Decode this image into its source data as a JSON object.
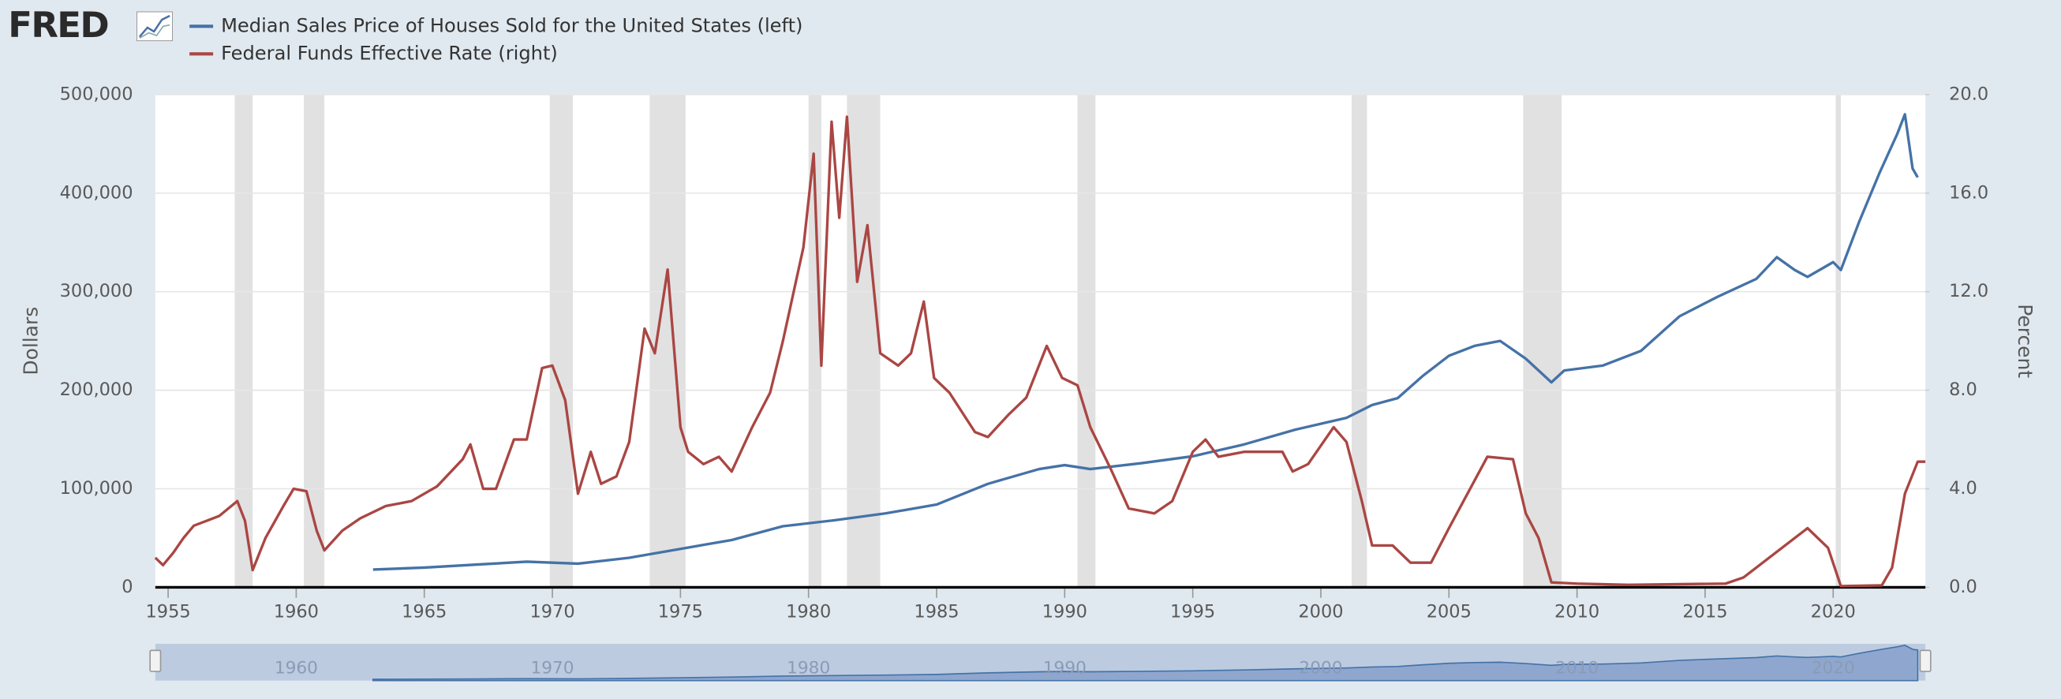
{
  "logo": "FRED",
  "chart_data": {
    "type": "line",
    "series": [
      {
        "name": "Median Sales Price of Houses Sold for the United States (left)",
        "color": "#4572a7",
        "axis": "y",
        "x": [
          1963,
          1965,
          1967,
          1969,
          1971,
          1973,
          1975,
          1977,
          1979,
          1981,
          1983,
          1985,
          1987,
          1989,
          1990,
          1991,
          1993,
          1995,
          1997,
          1999,
          2001,
          2002,
          2003,
          2004,
          2005,
          2006,
          2007,
          2008,
          2009,
          2009.5,
          2011,
          2012.5,
          2014,
          2015.5,
          2017,
          2017.8,
          2018.5,
          2019,
          2020,
          2020.3,
          2021,
          2021.8,
          2022.5,
          2022.8,
          2023.1,
          2023.3
        ],
        "values": [
          18000,
          20000,
          23000,
          26000,
          24000,
          30000,
          39000,
          48000,
          62000,
          68000,
          75000,
          84000,
          105000,
          120000,
          124000,
          120000,
          126000,
          133000,
          145000,
          160000,
          172000,
          185000,
          192000,
          215000,
          235000,
          245000,
          250000,
          232000,
          208000,
          220000,
          225000,
          240000,
          275000,
          295000,
          313000,
          335000,
          322000,
          315000,
          330000,
          322000,
          370000,
          420000,
          460000,
          480000,
          425000,
          416000
        ]
      },
      {
        "name": "Federal Funds Effective Rate (right)",
        "color": "#aa4643",
        "axis": "y2",
        "x": [
          1954.5,
          1954.8,
          1955.2,
          1955.6,
          1956.0,
          1956.5,
          1957.0,
          1957.7,
          1958.0,
          1958.3,
          1958.8,
          1959.5,
          1959.9,
          1960.4,
          1960.8,
          1961.1,
          1961.8,
          1962.5,
          1963.5,
          1964.5,
          1965.5,
          1966.5,
          1966.8,
          1967.3,
          1967.8,
          1968.5,
          1969.0,
          1969.6,
          1970.0,
          1970.5,
          1971.0,
          1971.5,
          1971.9,
          1972.5,
          1973.0,
          1973.6,
          1974.0,
          1974.5,
          1975.0,
          1975.3,
          1975.9,
          1976.5,
          1977.0,
          1977.8,
          1978.5,
          1979.0,
          1979.8,
          1980.2,
          1980.5,
          1980.9,
          1981.2,
          1981.5,
          1981.9,
          1982.3,
          1982.8,
          1983.5,
          1984.0,
          1984.5,
          1984.9,
          1985.5,
          1986.5,
          1987.0,
          1987.8,
          1988.5,
          1989.3,
          1989.9,
          1990.5,
          1991.0,
          1991.8,
          1992.5,
          1993.5,
          1994.2,
          1995.0,
          1995.5,
          1996.0,
          1997.0,
          1998.5,
          1998.9,
          1999.5,
          2000.5,
          2001.0,
          2001.6,
          2002.0,
          2002.8,
          2003.5,
          2004.3,
          2005.0,
          2006.5,
          2007.5,
          2008.0,
          2008.5,
          2009.0,
          2010.0,
          2012.0,
          2015.8,
          2016.5,
          2017.5,
          2018.5,
          2019.0,
          2019.8,
          2020.3,
          2021.9,
          2022.3,
          2022.8,
          2023.3,
          2023.6
        ],
        "values": [
          1.2,
          0.9,
          1.4,
          2.0,
          2.5,
          2.7,
          2.9,
          3.5,
          2.7,
          0.7,
          2.0,
          3.3,
          4.0,
          3.9,
          2.3,
          1.5,
          2.3,
          2.8,
          3.3,
          3.5,
          4.1,
          5.2,
          5.8,
          4.0,
          4.0,
          6.0,
          6.0,
          8.9,
          9.0,
          7.6,
          3.8,
          5.5,
          4.2,
          4.5,
          5.9,
          10.5,
          9.5,
          12.9,
          6.5,
          5.5,
          5.0,
          5.3,
          4.7,
          6.5,
          7.9,
          10.0,
          13.8,
          17.6,
          9.0,
          18.9,
          15.0,
          19.1,
          12.4,
          14.7,
          9.5,
          9.0,
          9.5,
          11.6,
          8.5,
          7.9,
          6.3,
          6.1,
          7.0,
          7.7,
          9.8,
          8.5,
          8.2,
          6.5,
          4.8,
          3.2,
          3.0,
          3.5,
          5.5,
          6.0,
          5.3,
          5.5,
          5.5,
          4.7,
          5.0,
          6.5,
          5.9,
          3.5,
          1.7,
          1.7,
          1.0,
          1.0,
          2.4,
          5.3,
          5.2,
          3.0,
          2.0,
          0.2,
          0.15,
          0.1,
          0.15,
          0.4,
          1.2,
          2.0,
          2.4,
          1.6,
          0.05,
          0.08,
          0.8,
          3.8,
          5.1,
          5.1
        ]
      }
    ],
    "recessions": [
      [
        1957.6,
        1958.3
      ],
      [
        1960.3,
        1961.1
      ],
      [
        1969.9,
        1970.8
      ],
      [
        1973.8,
        1975.2
      ],
      [
        1980.0,
        1980.5
      ],
      [
        1981.5,
        1982.8
      ],
      [
        1990.5,
        1991.2
      ],
      [
        2001.2,
        2001.8
      ],
      [
        2007.9,
        2009.4
      ],
      [
        2020.1,
        2020.3
      ]
    ],
    "y_label": "Dollars",
    "y2_label": "Percent",
    "xlim": [
      1954.5,
      2023.6
    ],
    "xticks": [
      1955,
      1960,
      1965,
      1970,
      1975,
      1980,
      1985,
      1990,
      1995,
      2000,
      2005,
      2010,
      2015,
      2020
    ],
    "ylim": [
      0,
      500000
    ],
    "yticks": [
      0,
      {
        "value": 100000,
        "label": "100,000"
      },
      {
        "value": 200000,
        "label": "200,000"
      },
      {
        "value": 300000,
        "label": "300,000"
      },
      {
        "value": 400000,
        "label": "400,000"
      },
      {
        "value": 500000,
        "label": "500,000"
      }
    ],
    "y2lim": [
      0,
      20
    ],
    "y2ticks": [
      {
        "value": 0,
        "label": "0.0"
      },
      {
        "value": 4,
        "label": "4.0"
      },
      {
        "value": 8,
        "label": "8.0"
      },
      {
        "value": 12,
        "label": "12.0"
      },
      {
        "value": 16,
        "label": "16.0"
      },
      {
        "value": 20,
        "label": "20.0"
      }
    ],
    "navigator_ticks": [
      1960,
      1970,
      1980,
      1990,
      2000,
      2010,
      2020
    ],
    "grid": true
  }
}
